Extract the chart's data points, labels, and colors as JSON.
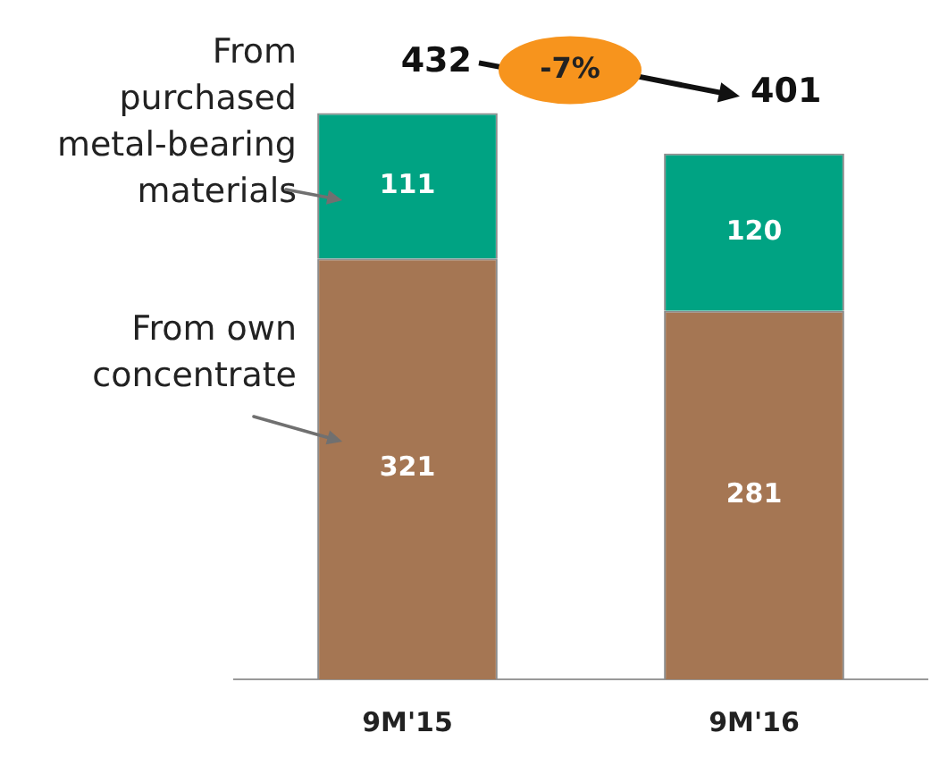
{
  "chart_data": {
    "type": "bar",
    "stacked": true,
    "categories": [
      "9M'15",
      "9M'16"
    ],
    "series": [
      {
        "name": "From own concentrate",
        "color": "#a57653",
        "values": [
          321,
          281
        ]
      },
      {
        "name": "From purchased metal-bearing materials",
        "color": "#00a383",
        "values": [
          111,
          120
        ]
      }
    ],
    "data_labels": true,
    "totals": [
      "432",
      "401"
    ],
    "annotations": [
      "-7%"
    ],
    "legend": false,
    "grid": false
  }
}
